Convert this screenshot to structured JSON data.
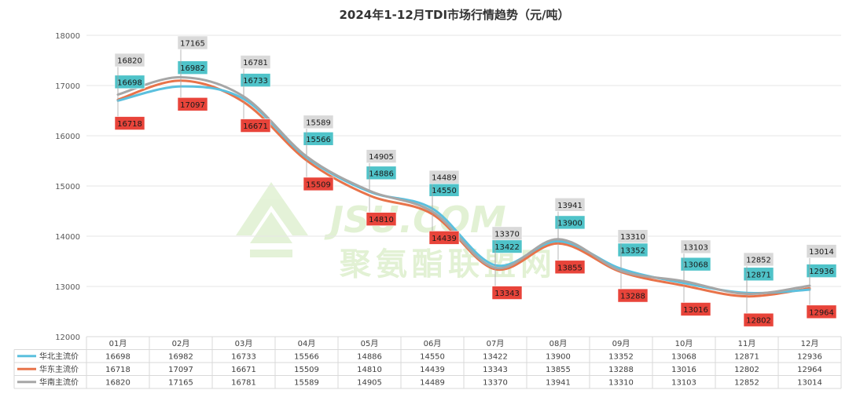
{
  "chart_data": {
    "type": "line",
    "title": "2024年1-12月TDI市场行情趋势（元/吨）",
    "categories": [
      "01月",
      "02月",
      "03月",
      "04月",
      "05月",
      "06月",
      "07月",
      "08月",
      "09月",
      "10月",
      "11月",
      "12月"
    ],
    "ylim": [
      12000,
      18000
    ],
    "yticks": [
      "12000",
      "13000",
      "14000",
      "15000",
      "16000",
      "17000",
      "18000"
    ],
    "grid": true,
    "legend": "data-table",
    "series": [
      {
        "name": "华北主流价",
        "color": "#5bc0de",
        "label_fill": "#4fc3c9",
        "label_text": "#1a1a1a",
        "values": [
          16698,
          16982,
          16733,
          15566,
          14886,
          14550,
          13422,
          13900,
          13352,
          13068,
          12871,
          12936
        ]
      },
      {
        "name": "华东主流价",
        "color": "#e8734a",
        "label_fill": "#e8443a",
        "label_text": "#1a1a1a",
        "values": [
          16718,
          17097,
          16671,
          15509,
          14810,
          14439,
          13343,
          13855,
          13288,
          13016,
          12802,
          12964
        ]
      },
      {
        "name": "华南主流价",
        "color": "#a6a6a6",
        "label_fill": "#d9d9d9",
        "label_text": "#1a1a1a",
        "values": [
          16820,
          17165,
          16781,
          15589,
          14905,
          14489,
          13370,
          13941,
          13310,
          13103,
          12852,
          13014
        ]
      }
    ]
  },
  "watermark": {
    "logo": "JSU.COM",
    "text": "聚氨酯联盟网"
  }
}
